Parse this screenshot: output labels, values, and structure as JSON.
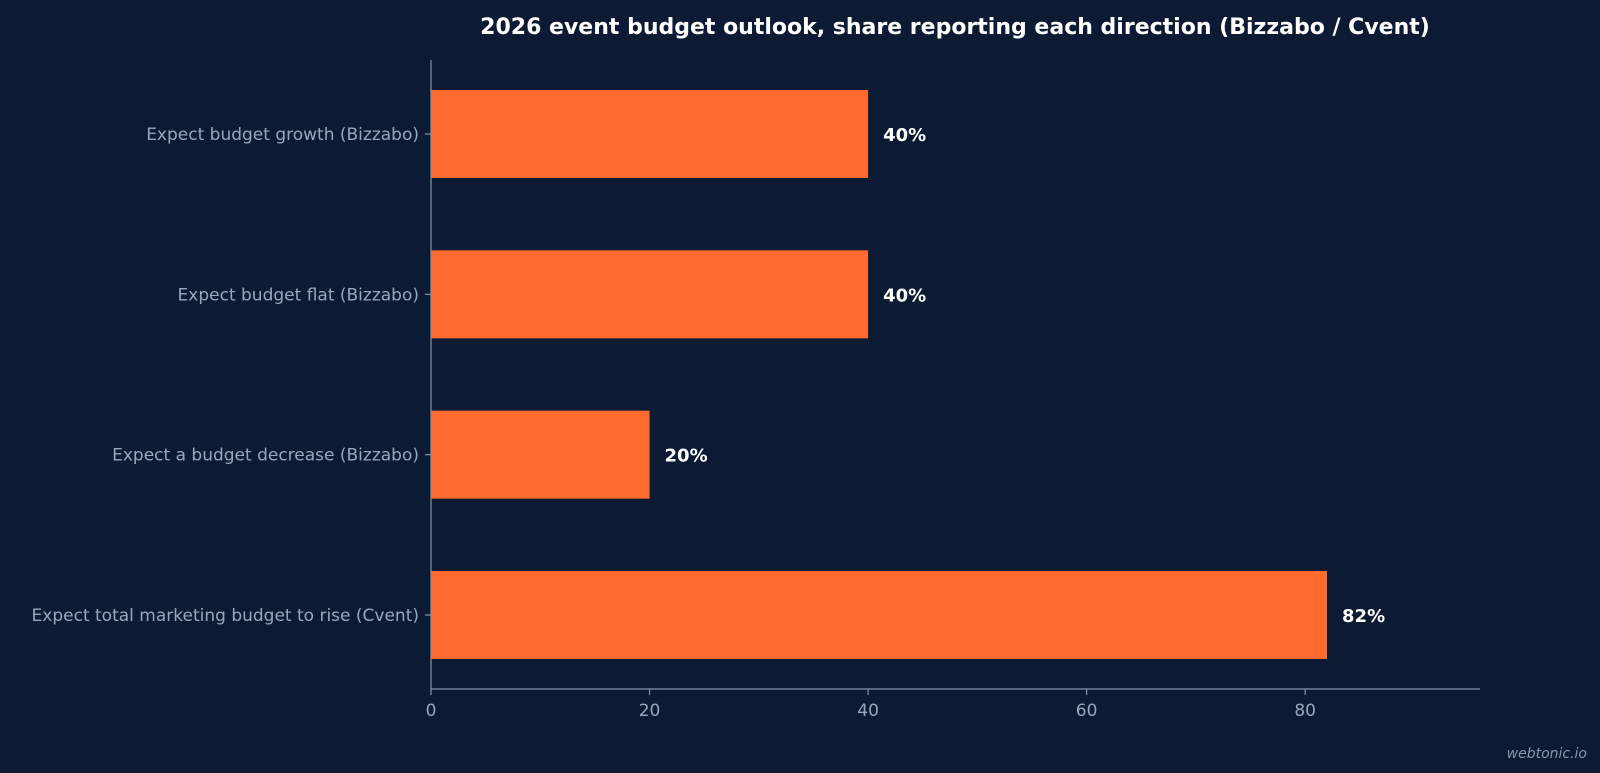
{
  "chart_data": {
    "type": "bar",
    "orientation": "horizontal",
    "title": "2026 event budget outlook, share reporting each direction (Bizzabo / Cvent)",
    "categories": [
      "Expect budget growth (Bizzabo)",
      "Expect budget flat (Bizzabo)",
      "Expect a budget decrease (Bizzabo)",
      "Expect total marketing budget to rise (Cvent)"
    ],
    "values": [
      40,
      40,
      20,
      82
    ],
    "value_labels": [
      "40%",
      "40%",
      "20%",
      "82%"
    ],
    "xticks": [
      0,
      20,
      40,
      60,
      80
    ],
    "xlim": [
      0,
      96
    ],
    "xlabel": "",
    "ylabel": "",
    "grid": false,
    "legend": "none",
    "colors": {
      "bar": "#ff6b2f",
      "background": "#0c1b33",
      "axis": "#8894a8",
      "tick_text": "#9aa7bb",
      "title_text": "#ffffff"
    }
  },
  "watermark": "webtonic.io"
}
